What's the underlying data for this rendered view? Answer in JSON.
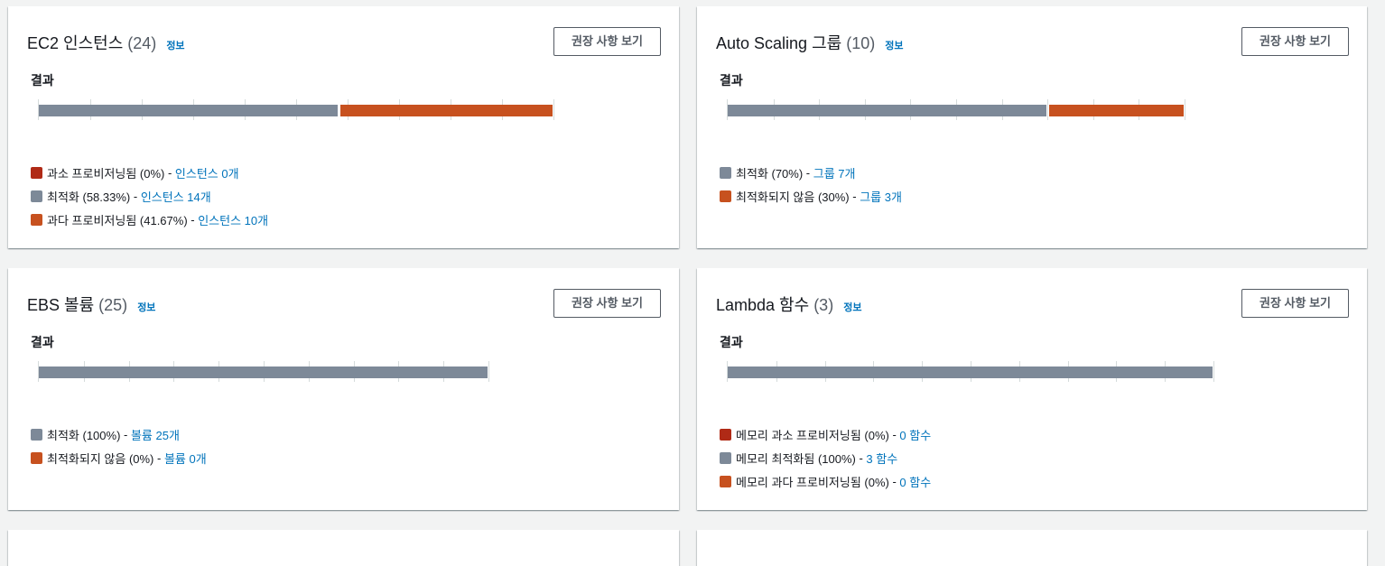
{
  "colors": {
    "under": "#b02a16",
    "optimized": "#7d8998",
    "over": "#c7511f",
    "not_optimized": "#c7511f",
    "link": "#0073bb"
  },
  "common": {
    "result_label": "결과",
    "info_label": "정보",
    "recommend_button": "권장 사항 보기"
  },
  "cards": [
    {
      "title": "EC2 인스턴스",
      "count": "(24)",
      "bar": [
        {
          "key": "optimized",
          "fraction": 0.5833
        },
        {
          "key": "over",
          "fraction": 0.4167
        }
      ],
      "legend": [
        {
          "key": "under",
          "text": "과소 프로비저닝됨 (0%)",
          "link": "인스턴스 0개"
        },
        {
          "key": "optimized",
          "text": "최적화 (58.33%)",
          "link": "인스턴스 14개"
        },
        {
          "key": "over",
          "text": "과다 프로비저닝됨 (41.67%)",
          "link": "인스턴스 10개"
        }
      ]
    },
    {
      "title": "Auto Scaling 그룹",
      "count": "(10)",
      "bar": [
        {
          "key": "optimized",
          "fraction": 0.7
        },
        {
          "key": "not_optimized",
          "fraction": 0.3
        }
      ],
      "legend": [
        {
          "key": "optimized",
          "text": "최적화 (70%)",
          "link": "그룹 7개"
        },
        {
          "key": "not_optimized",
          "text": "최적화되지 않음 (30%)",
          "link": "그룹 3개"
        }
      ]
    },
    {
      "title": "EBS 볼륨",
      "count": "(25)",
      "bar": [
        {
          "key": "optimized",
          "fraction": 1.0
        }
      ],
      "legend": [
        {
          "key": "optimized",
          "text": "최적화 (100%)",
          "link": "볼륨 25개"
        },
        {
          "key": "not_optimized",
          "text": "최적화되지 않음 (0%)",
          "link": "볼륨 0개"
        }
      ]
    },
    {
      "title": "Lambda 함수",
      "count": "(3)",
      "bar": [
        {
          "key": "optimized",
          "fraction": 1.0
        }
      ],
      "legend": [
        {
          "key": "under",
          "text": "메모리 과소 프로비저닝됨 (0%)",
          "link": "0 함수"
        },
        {
          "key": "optimized",
          "text": "메모리 최적화됨 (100%)",
          "link": "3 함수"
        },
        {
          "key": "over",
          "text": "메모리 과다 프로비저닝됨 (0%)",
          "link": "0 함수"
        }
      ]
    }
  ]
}
